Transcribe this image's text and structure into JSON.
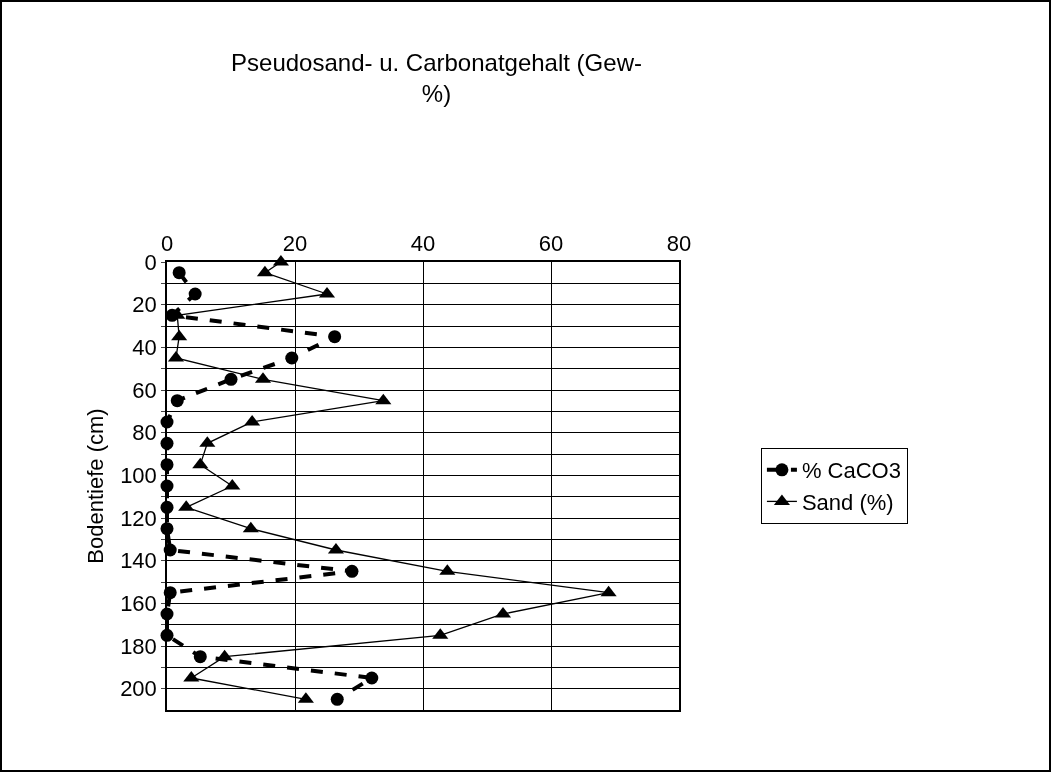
{
  "chart_data": {
    "type": "line",
    "title": "Pseudosand- u. Carbonatgehalt (Gew-\n%)",
    "ylabel": "Bodentiefe (cm)",
    "xlim": [
      0,
      80
    ],
    "xticks": [
      0,
      20,
      40,
      60,
      80
    ],
    "ylim": [
      210,
      0
    ],
    "yticks": [
      0,
      {
        "value": 10,
        "label": null
      },
      20,
      {
        "value": 30,
        "label": null
      },
      40,
      {
        "value": 50,
        "label": null
      },
      60,
      {
        "value": 70,
        "label": null
      },
      80,
      {
        "value": 90,
        "label": null
      },
      100,
      {
        "value": 110,
        "label": null
      },
      120,
      {
        "value": 130,
        "label": null
      },
      140,
      {
        "value": 150,
        "label": null
      },
      160,
      {
        "value": 170,
        "label": null
      },
      180,
      {
        "value": 190,
        "label": null
      },
      200
    ],
    "grid": true,
    "legend": "right",
    "series": [
      {
        "name": "% CaCO3",
        "color": "#000000",
        "marker": "circle",
        "line_style": "dashed",
        "x": [
          1.9,
          4.4,
          0.8,
          26.2,
          19.5,
          10,
          1.6,
          0,
          0,
          0,
          0,
          0,
          0,
          0.5,
          28.9,
          0.5,
          0,
          0,
          5.2,
          32,
          26.6
        ],
        "values": [
          5,
          15,
          25,
          35,
          45,
          55,
          65,
          75,
          85,
          95,
          105,
          115,
          125,
          135,
          145,
          155,
          165,
          175,
          185,
          195,
          205
        ]
      },
      {
        "name": "Sand (%)",
        "color": "#000000",
        "marker": "triangle",
        "line_style": "solid",
        "x": [
          17.8,
          15.3,
          25,
          1.6,
          1.9,
          1.4,
          15,
          33.8,
          13.3,
          6.3,
          5.2,
          10.2,
          3,
          13.1,
          26.4,
          43.8,
          69,
          52.5,
          42.7,
          9,
          3.8,
          21.7
        ],
        "values": [
          0,
          5,
          15,
          25,
          35,
          45,
          55,
          65,
          75,
          85,
          95,
          105,
          115,
          125,
          135,
          145,
          155,
          165,
          175,
          185,
          195,
          205
        ]
      }
    ]
  }
}
